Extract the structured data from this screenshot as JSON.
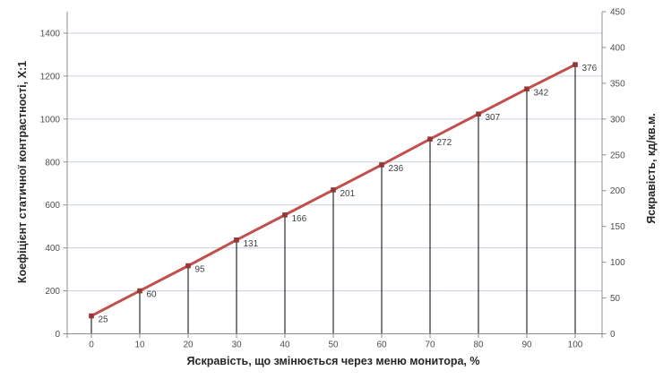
{
  "chart_data": {
    "type": "line",
    "title": "",
    "xlabel": "Яскравість, що змінюється через меню монитора, %",
    "ylabel_left": "Коефіцієнт статичної контрастності, Х:1",
    "ylabel_right": "Яскравість, кд/кв.м.",
    "x": [
      0,
      10,
      20,
      30,
      40,
      50,
      60,
      70,
      80,
      90,
      100
    ],
    "series": [
      {
        "name": "Яскравість, кд/кв.м.",
        "axis": "right",
        "values": [
          25,
          60,
          95,
          131,
          166,
          201,
          236,
          272,
          307,
          342,
          376
        ]
      }
    ],
    "point_labels": [
      "25",
      "60",
      "95",
      "131",
      "166",
      "201",
      "236",
      "272",
      "307",
      "342",
      "376"
    ],
    "x_ticks": [
      0,
      10,
      20,
      30,
      40,
      50,
      60,
      70,
      80,
      90,
      100
    ],
    "left_axis": {
      "min": 0,
      "max": 1500,
      "ticks": [
        0,
        200,
        400,
        600,
        800,
        1000,
        1200,
        1400
      ]
    },
    "right_axis": {
      "min": 0,
      "max": 450,
      "ticks": [
        0,
        50,
        100,
        150,
        200,
        250,
        300,
        350,
        400,
        450
      ]
    },
    "grid": "horizontal",
    "legend": "none",
    "drop_lines": true,
    "marker": "square",
    "colors": {
      "line": "#C0504D",
      "marker": "#953735",
      "gridline": "#C6D0DC",
      "axis": "#8E8E8E",
      "tick_label": "#4D4D4D",
      "data_label": "#404040",
      "drop_line": "#000000",
      "background": "#FFFFFF"
    }
  }
}
